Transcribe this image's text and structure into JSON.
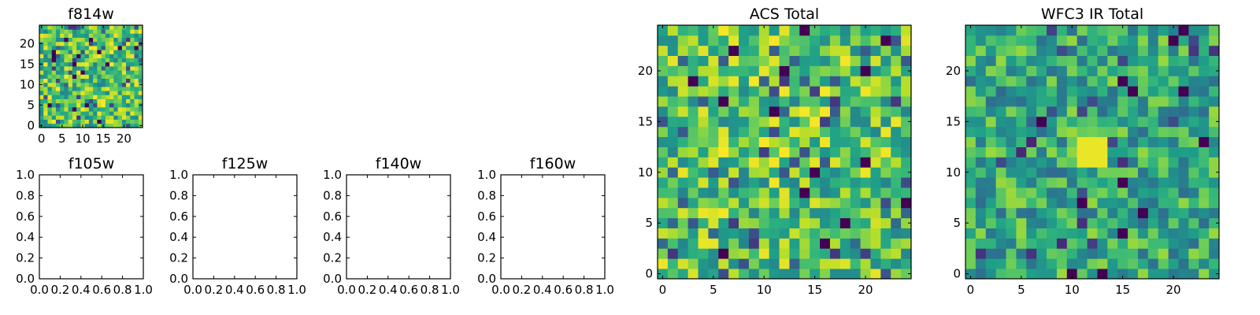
{
  "colormap": "viridis",
  "chart_data": [
    {
      "type": "heatmap",
      "title": "f814w",
      "grid_size": 25,
      "xlim": [
        -0.5,
        24.5
      ],
      "ylim": [
        -0.5,
        24.5
      ],
      "xticks": [
        0,
        5,
        10,
        15,
        20
      ],
      "yticks": [
        0,
        5,
        10,
        15,
        20
      ],
      "style": "noisy-bright",
      "seed": 11
    },
    {
      "type": "empty",
      "title": "f105w",
      "xlim": [
        0,
        1
      ],
      "ylim": [
        0,
        1
      ],
      "xticks": [
        "0.0",
        "0.2",
        "0.4",
        "0.6",
        "0.8",
        "1.0"
      ],
      "yticks": [
        "0.0",
        "0.2",
        "0.4",
        "0.6",
        "0.8",
        "1.0"
      ]
    },
    {
      "type": "empty",
      "title": "f125w",
      "xlim": [
        0,
        1
      ],
      "ylim": [
        0,
        1
      ],
      "xticks": [
        "0.0",
        "0.2",
        "0.4",
        "0.6",
        "0.8",
        "1.0"
      ],
      "yticks": [
        "0.0",
        "0.2",
        "0.4",
        "0.6",
        "0.8",
        "1.0"
      ]
    },
    {
      "type": "empty",
      "title": "f140w",
      "xlim": [
        0,
        1
      ],
      "ylim": [
        0,
        1
      ],
      "xticks": [
        "0.0",
        "0.2",
        "0.4",
        "0.6",
        "0.8",
        "1.0"
      ],
      "yticks": [
        "0.0",
        "0.2",
        "0.4",
        "0.6",
        "0.8",
        "1.0"
      ]
    },
    {
      "type": "empty",
      "title": "f160w",
      "xlim": [
        0,
        1
      ],
      "ylim": [
        0,
        1
      ],
      "xticks": [
        "0.0",
        "0.2",
        "0.4",
        "0.6",
        "0.8",
        "1.0"
      ],
      "yticks": [
        "0.0",
        "0.2",
        "0.4",
        "0.6",
        "0.8",
        "1.0"
      ]
    },
    {
      "type": "heatmap",
      "title": "ACS Total",
      "grid_size": 25,
      "xlim": [
        -0.5,
        24.5
      ],
      "ylim": [
        -0.5,
        24.5
      ],
      "xticks": [
        0,
        5,
        10,
        15,
        20
      ],
      "yticks": [
        0,
        5,
        10,
        15,
        20
      ],
      "style": "noisy-bright",
      "seed": 23
    },
    {
      "type": "heatmap",
      "title": "WFC3 IR Total",
      "grid_size": 25,
      "xlim": [
        -0.5,
        24.5
      ],
      "ylim": [
        -0.5,
        24.5
      ],
      "xticks": [
        0,
        5,
        10,
        15,
        20
      ],
      "yticks": [
        0,
        5,
        10,
        15,
        20
      ],
      "style": "noisy-mid",
      "seed": 37,
      "bright_spot": {
        "x": [
          11,
          13
        ],
        "y": [
          11,
          13
        ]
      }
    }
  ]
}
